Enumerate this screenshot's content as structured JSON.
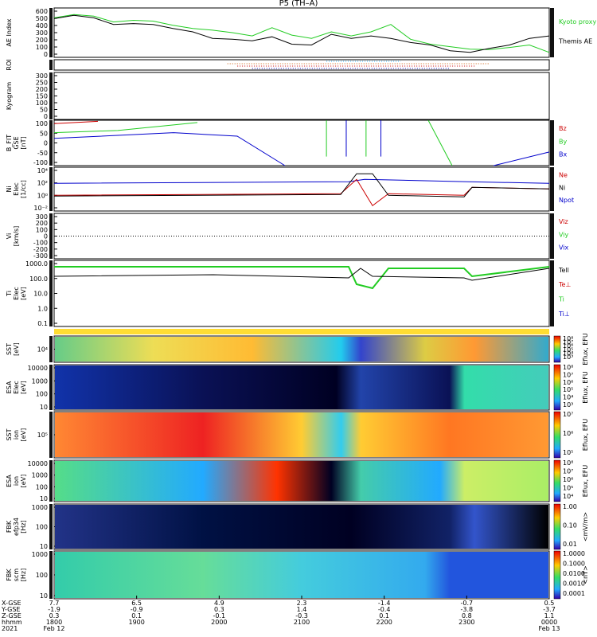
{
  "title": "P5 (TH–A)",
  "footer_date_left": "2021",
  "chart_data": [
    {
      "name": "ae",
      "type": "line",
      "ylabel": "AE Index",
      "ylim": [
        0,
        600
      ],
      "yticks": [
        "600",
        "500",
        "400",
        "300",
        "200",
        "100",
        "0"
      ],
      "legend": [
        {
          "label": "Kyoto proxy AE",
          "color": "#22cc22"
        },
        {
          "label": "Themis AE",
          "color": "#000000"
        }
      ],
      "series": [
        {
          "name": "Kyoto proxy AE",
          "color": "#22cc22",
          "x": [
            0,
            0.04,
            0.08,
            0.12,
            0.16,
            0.2,
            0.24,
            0.28,
            0.32,
            0.36,
            0.4,
            0.44,
            0.48,
            0.52,
            0.56,
            0.6,
            0.64,
            0.68,
            0.72,
            0.76,
            0.8,
            0.84,
            0.88,
            0.92,
            0.96,
            1.0
          ],
          "y": [
            480,
            520,
            500,
            430,
            450,
            440,
            390,
            350,
            330,
            300,
            260,
            360,
            270,
            230,
            310,
            260,
            310,
            400,
            220,
            160,
            130,
            100,
            95,
            120,
            150,
            60
          ]
        },
        {
          "name": "Themis AE",
          "color": "#000000",
          "x": [
            0,
            0.04,
            0.08,
            0.12,
            0.16,
            0.2,
            0.24,
            0.28,
            0.32,
            0.36,
            0.4,
            0.44,
            0.48,
            0.52,
            0.56,
            0.6,
            0.64,
            0.68,
            0.72,
            0.76,
            0.8,
            0.84,
            0.88,
            0.92,
            0.96,
            1.0
          ],
          "y": [
            470,
            510,
            480,
            400,
            410,
            400,
            350,
            310,
            230,
            220,
            200,
            250,
            160,
            150,
            280,
            230,
            260,
            230,
            180,
            150,
            80,
            60,
            110,
            150,
            230,
            260
          ]
        }
      ]
    },
    {
      "name": "roi",
      "type": "table",
      "ylabel": "ROI"
    },
    {
      "name": "kyoto",
      "type": "line",
      "ylabel": "Kyogram",
      "ylim": [
        0,
        300
      ],
      "yticks": [
        "300",
        "250",
        "200",
        "150",
        "100",
        "50",
        "0"
      ]
    },
    {
      "name": "bfit",
      "type": "line",
      "ylabel": "B_FIT\nGSE\n[nT]",
      "ylim": [
        -100,
        100
      ],
      "yticks": [
        "100",
        "50",
        "0",
        "-50",
        "-100"
      ],
      "legend": [
        {
          "label": "Bz",
          "color": "#cc0000"
        },
        {
          "label": "By",
          "color": "#22cc22"
        },
        {
          "label": "Bx",
          "color": "#0000cc"
        }
      ]
    },
    {
      "name": "ni",
      "type": "line",
      "ylabel": "Ni\nElec\n[1/cc]",
      "yticks": [
        "10⁴",
        "10²",
        "10⁰",
        "10⁻²"
      ],
      "legend": [
        {
          "label": "Ne",
          "color": "#cc0000"
        },
        {
          "label": "Ni",
          "color": "#000000"
        },
        {
          "label": "Npot",
          "color": "#0000cc"
        }
      ]
    },
    {
      "name": "vi",
      "type": "line",
      "ylabel": "Vi\n[km/s]",
      "ylim": [
        -300,
        300
      ],
      "yticks": [
        "300",
        "200",
        "100",
        "0",
        "-100",
        "-200",
        "-300"
      ],
      "legend": [
        {
          "label": "Viz",
          "color": "#cc0000"
        },
        {
          "label": "Viy",
          "color": "#22cc22"
        },
        {
          "label": "Vix",
          "color": "#0000cc"
        }
      ]
    },
    {
      "name": "ti",
      "type": "line",
      "ylabel": "Ti\nElec\n[eV]",
      "yticks": [
        "1000.0",
        "100.0",
        "10.0",
        "1.0",
        "0.1"
      ],
      "legend": [
        {
          "label": "Tell",
          "color": "#000000"
        },
        {
          "label": "Te⊥",
          "color": "#cc0000"
        },
        {
          "label": "Ti",
          "color": "#22cc22"
        },
        {
          "label": "Ti⊥",
          "color": "#0000cc"
        }
      ]
    },
    {
      "name": "sst_e",
      "type": "heatmap",
      "ylabel": "SST\n[eV]",
      "yticks": [
        "10⁴"
      ],
      "cbar_label": "Eflux, EFU",
      "cbar_ticks": [
        "10⁸",
        "10⁷",
        "10⁶",
        "10⁵",
        "10⁴",
        "10³"
      ]
    },
    {
      "name": "esa_e",
      "type": "heatmap",
      "ylabel": "ESA\nElec\n[eV]",
      "yticks": [
        "10000",
        "1000",
        "100",
        "10"
      ],
      "cbar_label": "Eflux, EFU",
      "cbar_ticks": [
        "10⁸",
        "10⁷",
        "10⁶",
        "10⁵",
        "10⁴",
        "10³"
      ]
    },
    {
      "name": "sst_i",
      "type": "heatmap",
      "ylabel": "SST\nion\n[eV]",
      "yticks": [
        "10⁵"
      ],
      "cbar_label": "Eflux, EFU",
      "cbar_ticks": [
        "10⁷",
        "10⁶",
        "10⁵"
      ]
    },
    {
      "name": "esa_i",
      "type": "heatmap",
      "ylabel": "ESA\nion\n[eV]",
      "yticks": [
        "10000",
        "1000",
        "100",
        "10"
      ],
      "cbar_label": "Eflux, EFU",
      "cbar_ticks": [
        "10⁸",
        "10⁷",
        "10⁶",
        "10⁵",
        "10⁴"
      ]
    },
    {
      "name": "fbk_e",
      "type": "heatmap",
      "ylabel": "FBK\nefp34\n[Hz]",
      "yticks": [
        "1000",
        "100",
        "10"
      ],
      "cbar_label": "<mV/m>",
      "cbar_ticks": [
        "1.00",
        "0.10",
        "0.01"
      ]
    },
    {
      "name": "fbk_b",
      "type": "heatmap",
      "ylabel": "FBK\nscm\n[Hz]",
      "yticks": [
        "1000",
        "100",
        "10"
      ],
      "cbar_label": "<nT>",
      "cbar_ticks": [
        "1.0000",
        "0.1000",
        "0.0100",
        "0.0010",
        "0.0001"
      ]
    }
  ],
  "xaxis": {
    "row_labels": [
      "X-GSE",
      "Y-GSE",
      "Z-GSE",
      "hhmm",
      "2021"
    ],
    "columns": [
      [
        "7.7",
        "-1.9",
        "0.3",
        "1800",
        "Feb 12"
      ],
      [
        "6.5",
        "-0.9",
        "0.1",
        "1900",
        ""
      ],
      [
        "4.9",
        "0.3",
        "-0.1",
        "2000",
        ""
      ],
      [
        "2.3",
        "1.4",
        "-0.3",
        "2100",
        ""
      ],
      [
        "-1.4",
        "-0.4",
        "0.1",
        "2200",
        ""
      ],
      [
        "-0.7",
        "-3.8",
        "0.8",
        "2300",
        ""
      ],
      [
        "0.5",
        "-3.7",
        "1.1",
        "0000",
        "Feb 13"
      ]
    ]
  }
}
